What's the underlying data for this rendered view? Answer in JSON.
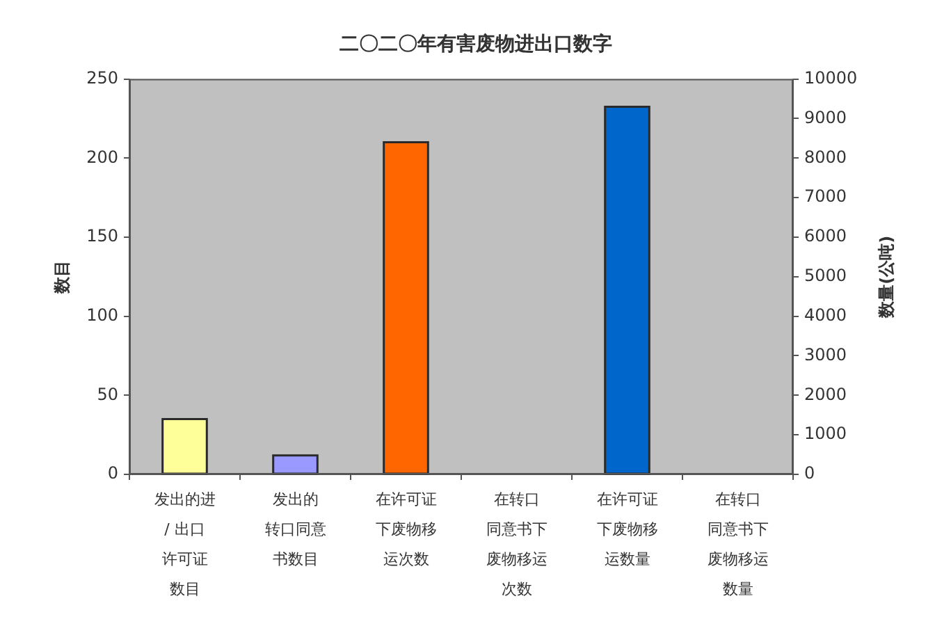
{
  "chart_data": {
    "type": "bar",
    "title": "二〇二〇年有害废物进出口数字",
    "ylabel": "数目",
    "y2label": "数量(公吨)",
    "categories": [
      "发出的进 / 出口许可证数目",
      "发出的转口同意书数目",
      "在许可证下废物移运次数",
      "在转口同意书下废物移运次数",
      "在许可证下废物移运数量",
      "在转口同意书下废物移运数量"
    ],
    "series": [
      {
        "values": [
          35,
          12,
          210,
          null,
          null,
          null
        ],
        "colors": [
          "#ffff99",
          "#9999ff",
          "#ff6600",
          null,
          null,
          null
        ]
      },
      {
        "axis": "y2",
        "values": [
          null,
          null,
          null,
          null,
          9300,
          null
        ],
        "color": "#0066cc"
      }
    ],
    "ylim": [
      0,
      250
    ],
    "yticks": [
      0,
      50,
      100,
      150,
      200,
      250
    ],
    "y2lim": [
      0,
      10000
    ],
    "y2ticks": [
      0,
      1000,
      2000,
      3000,
      4000,
      5000,
      6000,
      7000,
      8000,
      9000,
      10000
    ],
    "grid": false,
    "legend": false
  }
}
